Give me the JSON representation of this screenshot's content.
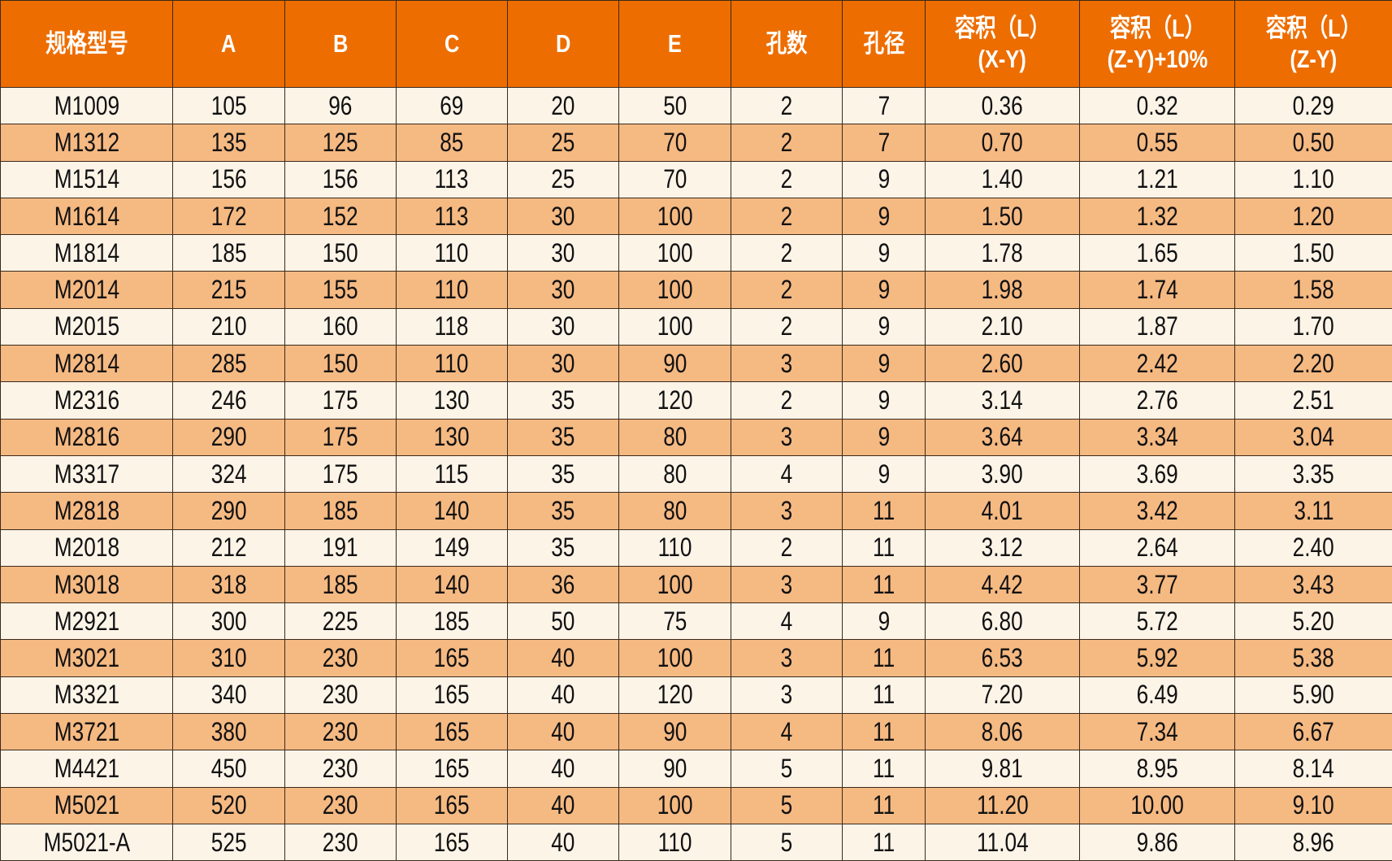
{
  "colors": {
    "header": "#ED6D00",
    "row_light": "#FDF4E8",
    "row_dark": "#F5B982"
  },
  "headers": [
    {
      "l1": "规格型号",
      "l2": ""
    },
    {
      "l1": "A",
      "l2": ""
    },
    {
      "l1": "B",
      "l2": ""
    },
    {
      "l1": "C",
      "l2": ""
    },
    {
      "l1": "D",
      "l2": ""
    },
    {
      "l1": "E",
      "l2": ""
    },
    {
      "l1": "孔数",
      "l2": ""
    },
    {
      "l1": "孔径",
      "l2": ""
    },
    {
      "l1": "容积（L）",
      "l2": "(X-Y)"
    },
    {
      "l1": "容积（L）",
      "l2": "(Z-Y)+10%"
    },
    {
      "l1": "容积（L）",
      "l2": "(Z-Y)"
    }
  ],
  "rows": [
    [
      "M1009",
      "105",
      "96",
      "69",
      "20",
      "50",
      "2",
      "7",
      "0.36",
      "0.32",
      "0.29"
    ],
    [
      "M1312",
      "135",
      "125",
      "85",
      "25",
      "70",
      "2",
      "7",
      "0.70",
      "0.55",
      "0.50"
    ],
    [
      "M1514",
      "156",
      "156",
      "113",
      "25",
      "70",
      "2",
      "9",
      "1.40",
      "1.21",
      "1.10"
    ],
    [
      "M1614",
      "172",
      "152",
      "113",
      "30",
      "100",
      "2",
      "9",
      "1.50",
      "1.32",
      "1.20"
    ],
    [
      "M1814",
      "185",
      "150",
      "110",
      "30",
      "100",
      "2",
      "9",
      "1.78",
      "1.65",
      "1.50"
    ],
    [
      "M2014",
      "215",
      "155",
      "110",
      "30",
      "100",
      "2",
      "9",
      "1.98",
      "1.74",
      "1.58"
    ],
    [
      "M2015",
      "210",
      "160",
      "118",
      "30",
      "100",
      "2",
      "9",
      "2.10",
      "1.87",
      "1.70"
    ],
    [
      "M2814",
      "285",
      "150",
      "110",
      "30",
      "90",
      "3",
      "9",
      "2.60",
      "2.42",
      "2.20"
    ],
    [
      "M2316",
      "246",
      "175",
      "130",
      "35",
      "120",
      "2",
      "9",
      "3.14",
      "2.76",
      "2.51"
    ],
    [
      "M2816",
      "290",
      "175",
      "130",
      "35",
      "80",
      "3",
      "9",
      "3.64",
      "3.34",
      "3.04"
    ],
    [
      "M3317",
      "324",
      "175",
      "115",
      "35",
      "80",
      "4",
      "9",
      "3.90",
      "3.69",
      "3.35"
    ],
    [
      "M2818",
      "290",
      "185",
      "140",
      "35",
      "80",
      "3",
      "11",
      "4.01",
      "3.42",
      "3.11"
    ],
    [
      "M2018",
      "212",
      "191",
      "149",
      "35",
      "110",
      "2",
      "11",
      "3.12",
      "2.64",
      "2.40"
    ],
    [
      "M3018",
      "318",
      "185",
      "140",
      "36",
      "100",
      "3",
      "11",
      "4.42",
      "3.77",
      "3.43"
    ],
    [
      "M2921",
      "300",
      "225",
      "185",
      "50",
      "75",
      "4",
      "9",
      "6.80",
      "5.72",
      "5.20"
    ],
    [
      "M3021",
      "310",
      "230",
      "165",
      "40",
      "100",
      "3",
      "11",
      "6.53",
      "5.92",
      "5.38"
    ],
    [
      "M3321",
      "340",
      "230",
      "165",
      "40",
      "120",
      "3",
      "11",
      "7.20",
      "6.49",
      "5.90"
    ],
    [
      "M3721",
      "380",
      "230",
      "165",
      "40",
      "90",
      "4",
      "11",
      "8.06",
      "7.34",
      "6.67"
    ],
    [
      "M4421",
      "450",
      "230",
      "165",
      "40",
      "90",
      "5",
      "11",
      "9.81",
      "8.95",
      "8.14"
    ],
    [
      "M5021",
      "520",
      "230",
      "165",
      "40",
      "100",
      "5",
      "11",
      "11.20",
      "10.00",
      "9.10"
    ],
    [
      "M5021-A",
      "525",
      "230",
      "165",
      "40",
      "110",
      "5",
      "11",
      "11.04",
      "9.86",
      "8.96"
    ]
  ]
}
